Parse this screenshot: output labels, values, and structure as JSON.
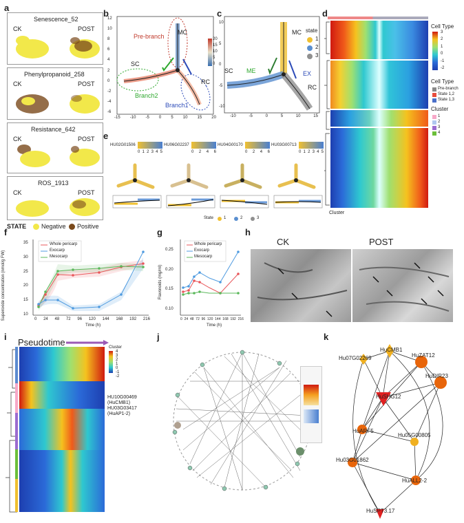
{
  "panels": {
    "a": "a",
    "b": "b",
    "c": "c",
    "d": "d",
    "e": "e",
    "f": "f",
    "g": "g",
    "h": "h",
    "i": "i",
    "j": "j",
    "k": "k"
  },
  "panel_a": {
    "rows": [
      {
        "title": "Senescence_52",
        "ck": "CK",
        "post": "POST"
      },
      {
        "title": "Phenylpropanoid_258",
        "ck": "CK",
        "post": "POST"
      },
      {
        "title": "Resistance_642",
        "ck": "CK",
        "post": "POST"
      },
      {
        "title": "ROS_1913",
        "ck": "CK",
        "post": "POST"
      }
    ],
    "legend": {
      "title": "STATE",
      "neg": "Negative",
      "pos": "Positive",
      "neg_color": "#f2e84a",
      "pos_color": "#7a4a1c"
    }
  },
  "panel_b": {
    "mc": "MC",
    "sc": "SC",
    "rc": "RC",
    "prebranch": "Pre-branch",
    "branch1": "Branch1",
    "branch2": "Branch2",
    "xticks": [
      "-15",
      "-10",
      "-5",
      "0",
      "5",
      "10",
      "15",
      "20"
    ],
    "yticks": [
      "-6",
      "-4",
      "-2",
      "0",
      "2",
      "4",
      "6",
      "8",
      "10",
      "12"
    ],
    "cb": [
      "20",
      "15",
      "10",
      "5",
      "0"
    ]
  },
  "panel_c": {
    "mc": "MC",
    "sc": "SC",
    "rc": "RC",
    "me": "ME",
    "ex": "EX",
    "state_title": "state",
    "states": [
      "1",
      "2",
      "3"
    ],
    "state_colors": [
      "#f0c030",
      "#5a8fd0",
      "#909090"
    ],
    "xticks": [
      "-10",
      "-5",
      "0",
      "5",
      "10",
      "15"
    ],
    "yticks": [
      "-10",
      "-5",
      "0",
      "5",
      "10"
    ]
  },
  "panel_d": {
    "legend_title": "Cell Type",
    "cb": [
      "3",
      "2",
      "1",
      "0",
      "-1",
      "-2"
    ],
    "ct_title": "Cell Type",
    "ct_items": [
      "Pre-branch",
      "State 1,2",
      "State 1,3"
    ],
    "ct_colors": [
      "#888888",
      "#e74c3c",
      "#4a6fc8"
    ],
    "cl_title": "Cluster",
    "cl_items": [
      "1",
      "2",
      "3",
      "4"
    ],
    "cl_colors": [
      "#f7a8c8",
      "#b0c8f0",
      "#9b6bd0",
      "#6bbf3a"
    ],
    "footer": "Cluster"
  },
  "panel_e": {
    "genes": [
      "HU02G01506",
      "HU06G02237",
      "HU04G00170",
      "HU03G00713"
    ],
    "scales": [
      [
        "0",
        "1",
        "2",
        "3",
        "4",
        "5"
      ],
      [
        "0",
        "2",
        "4",
        "6"
      ],
      [
        "0",
        "2",
        "4",
        "6"
      ],
      [
        "0",
        "1",
        "2",
        "3",
        "4",
        "5"
      ]
    ],
    "state_label": "State",
    "states": [
      "1",
      "2",
      "3"
    ]
  },
  "panel_f": {
    "ylabel": "Superoxide concentration (nmol/g FW)",
    "xlabel": "Time (h)",
    "legend": [
      "Whole pericarp",
      "Exocarp",
      "Mesocarp"
    ],
    "colors": [
      "#e8575b",
      "#4f9be0",
      "#5bb85b"
    ],
    "xticks": [
      "0",
      "24",
      "48",
      "72",
      "96",
      "120",
      "144",
      "168",
      "192",
      "216"
    ],
    "yticks": [
      "10",
      "15",
      "20",
      "25",
      "30",
      "35"
    ]
  },
  "panel_g": {
    "ylabel": "Flavonoids (mg/ml)",
    "xlabel": "Time (h)",
    "legend": [
      "Whole pericarp",
      "Exocarp",
      "Mesocarp"
    ],
    "colors": [
      "#e8575b",
      "#4f9be0",
      "#5bb85b"
    ],
    "xticks": [
      "0",
      "24",
      "48",
      "72",
      "96",
      "120",
      "144",
      "168",
      "192",
      "216"
    ],
    "yticks": [
      "0.10",
      "0.15",
      "0.20",
      "0.25"
    ]
  },
  "panel_h": {
    "ck": "CK",
    "post": "POST"
  },
  "panel_i": {
    "title": "Pseudotime",
    "cluster_title": "Cluster",
    "cb": [
      "4",
      "3",
      "2",
      "1",
      "0",
      "-1",
      "-2"
    ],
    "labels": [
      "HU10G00469",
      "(HuCMB1)",
      "HU03G03417",
      "(HuAP1-2)"
    ]
  },
  "panel_k": {
    "nodes": [
      "HuCMB1",
      "Hu07G02269",
      "HuZAT12",
      "HuDIR23",
      "HuSHG12",
      "HuARF5",
      "Hu05G00805",
      "Hu03G01862",
      "HuALL2-2",
      "HuSPT3.17"
    ]
  }
}
